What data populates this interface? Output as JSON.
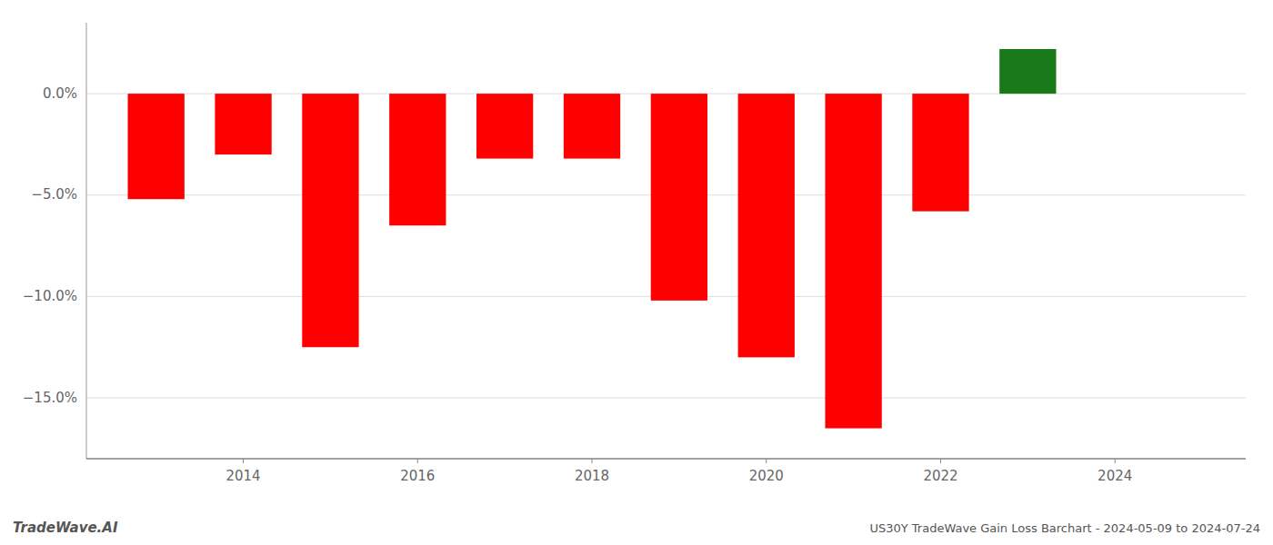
{
  "chart_data": {
    "type": "bar",
    "title": "US30Y TradeWave Gain Loss Barchart - 2024-05-09 to 2024-07-24",
    "annotations": [
      "TradeWave.AI"
    ],
    "x": [
      2013,
      2014,
      2015,
      2016,
      2017,
      2018,
      2019,
      2020,
      2021,
      2022,
      2023
    ],
    "values": [
      -5.2,
      -3.0,
      -12.5,
      -6.5,
      -3.2,
      -3.2,
      -10.2,
      -13.0,
      -16.5,
      -5.8,
      2.2
    ],
    "colors": [
      "#ff0000",
      "#ff0000",
      "#ff0000",
      "#ff0000",
      "#ff0000",
      "#ff0000",
      "#ff0000",
      "#ff0000",
      "#ff0000",
      "#ff0000",
      "#1a7a1a"
    ],
    "xlim": [
      2012.2,
      2025.5
    ],
    "xticks": [
      2014,
      2016,
      2018,
      2020,
      2022,
      2024
    ],
    "ylim": [
      -18.0,
      3.5
    ],
    "yticks": [
      {
        "value": 0.0,
        "label": "0.0%"
      },
      {
        "value": -5.0,
        "label": "−5.0%"
      },
      {
        "value": -10.0,
        "label": "−10.0%"
      },
      {
        "value": -15.0,
        "label": "−15.0%"
      }
    ],
    "grid": true
  }
}
